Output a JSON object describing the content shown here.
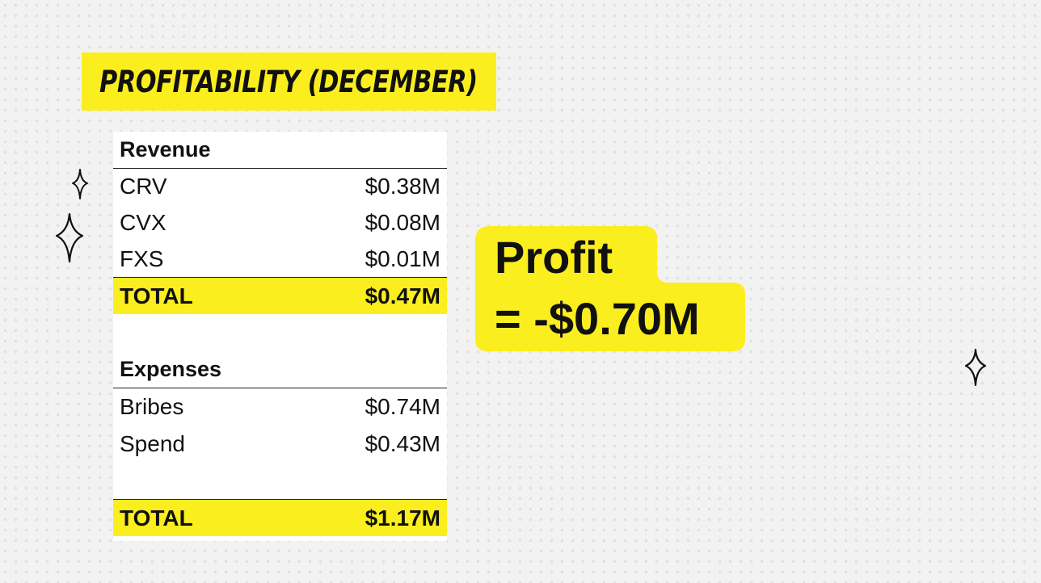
{
  "title": "PROFITABILITY (DECEMBER)",
  "revenue": {
    "header": "Revenue",
    "items": [
      {
        "label": "CRV",
        "value": "$0.38M"
      },
      {
        "label": "CVX",
        "value": "$0.08M"
      },
      {
        "label": "FXS",
        "value": "$0.01M"
      }
    ],
    "total_label": "TOTAL",
    "total_value": "$0.47M"
  },
  "expenses": {
    "header": "Expenses",
    "items": [
      {
        "label": "Bribes",
        "value": "$0.74M"
      },
      {
        "label": "Spend",
        "value": "$0.43M"
      }
    ],
    "total_label": "TOTAL",
    "total_value": "$1.17M"
  },
  "profit": {
    "line1": "Profit",
    "line2": "= -$0.70M"
  },
  "colors": {
    "highlight": "#fbee1f",
    "background": "#f2f2f2",
    "text": "#111111"
  },
  "icons": [
    "sparkle-icon",
    "sparkle-icon",
    "sparkle-icon"
  ]
}
